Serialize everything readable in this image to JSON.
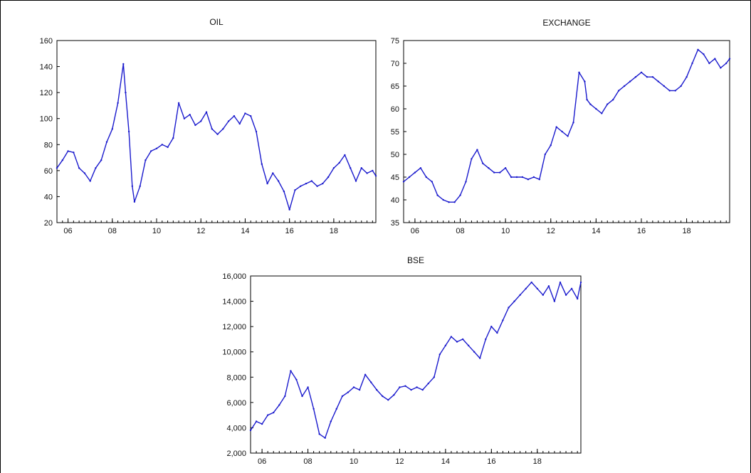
{
  "colors": {
    "series": "#1a1acd",
    "axis": "#000000",
    "background": "#ffffff"
  },
  "chart_data": [
    {
      "type": "line",
      "title": "OIL",
      "ylim": [
        20,
        160
      ],
      "yticks": [
        20,
        40,
        60,
        80,
        100,
        120,
        140,
        160
      ],
      "xlim": [
        2005.5,
        2019.9
      ],
      "xticks": [
        2006,
        2008,
        2010,
        2012,
        2014,
        2016,
        2018
      ],
      "xticklabels": [
        "06",
        "08",
        "10",
        "12",
        "14",
        "16",
        "18"
      ],
      "grid": false,
      "series": [
        {
          "x": [
            2005.5,
            2005.75,
            2006.0,
            2006.25,
            2006.5,
            2006.75,
            2007.0,
            2007.25,
            2007.5,
            2007.75,
            2008.0,
            2008.25,
            2008.5,
            2008.6,
            2008.75,
            2008.9,
            2009.0,
            2009.25,
            2009.5,
            2009.75,
            2010.0,
            2010.25,
            2010.5,
            2010.75,
            2011.0,
            2011.25,
            2011.5,
            2011.75,
            2012.0,
            2012.25,
            2012.5,
            2012.75,
            2013.0,
            2013.25,
            2013.5,
            2013.75,
            2014.0,
            2014.25,
            2014.5,
            2014.75,
            2015.0,
            2015.25,
            2015.5,
            2015.75,
            2016.0,
            2016.25,
            2016.5,
            2016.75,
            2017.0,
            2017.25,
            2017.5,
            2017.75,
            2018.0,
            2018.25,
            2018.5,
            2018.75,
            2019.0,
            2019.25,
            2019.5,
            2019.75,
            2019.9
          ],
          "values": [
            62,
            68,
            75,
            74,
            62,
            58,
            52,
            62,
            68,
            82,
            92,
            112,
            142,
            120,
            90,
            48,
            36,
            48,
            68,
            75,
            77,
            80,
            78,
            85,
            112,
            100,
            103,
            95,
            98,
            105,
            92,
            88,
            92,
            98,
            102,
            96,
            104,
            102,
            90,
            65,
            50,
            58,
            52,
            44,
            30,
            45,
            48,
            50,
            52,
            48,
            50,
            55,
            62,
            66,
            72,
            62,
            52,
            62,
            58,
            60,
            56
          ]
        }
      ]
    },
    {
      "type": "line",
      "title": "EXCHANGE",
      "ylim": [
        35,
        75
      ],
      "yticks": [
        35,
        40,
        45,
        50,
        55,
        60,
        65,
        70,
        75
      ],
      "xlim": [
        2005.5,
        2019.9
      ],
      "xticks": [
        2006,
        2008,
        2010,
        2012,
        2014,
        2016,
        2018
      ],
      "xticklabels": [
        "06",
        "08",
        "10",
        "12",
        "14",
        "16",
        "18"
      ],
      "grid": false,
      "series": [
        {
          "x": [
            2005.5,
            2005.75,
            2006.0,
            2006.25,
            2006.5,
            2006.75,
            2007.0,
            2007.25,
            2007.5,
            2007.75,
            2008.0,
            2008.25,
            2008.5,
            2008.75,
            2009.0,
            2009.25,
            2009.5,
            2009.75,
            2010.0,
            2010.25,
            2010.5,
            2010.75,
            2011.0,
            2011.25,
            2011.5,
            2011.75,
            2012.0,
            2012.25,
            2012.5,
            2012.75,
            2013.0,
            2013.25,
            2013.5,
            2013.6,
            2013.75,
            2014.0,
            2014.25,
            2014.5,
            2014.75,
            2015.0,
            2015.25,
            2015.5,
            2015.75,
            2016.0,
            2016.25,
            2016.5,
            2016.75,
            2017.0,
            2017.25,
            2017.5,
            2017.75,
            2018.0,
            2018.25,
            2018.5,
            2018.75,
            2019.0,
            2019.25,
            2019.5,
            2019.75,
            2019.9
          ],
          "values": [
            44,
            45,
            46,
            47,
            45,
            44,
            41,
            40,
            39.5,
            39.5,
            41,
            44,
            49,
            51,
            48,
            47,
            46,
            46,
            47,
            45,
            45,
            45,
            44.5,
            45,
            44.5,
            50,
            52,
            56,
            55,
            54,
            57,
            68,
            66,
            62,
            61,
            60,
            59,
            61,
            62,
            64,
            65,
            66,
            67,
            68,
            67,
            67,
            66,
            65,
            64,
            64,
            65,
            67,
            70,
            73,
            72,
            70,
            71,
            69,
            70,
            71
          ]
        }
      ]
    },
    {
      "type": "line",
      "title": "BSE",
      "ylim": [
        2000,
        16000
      ],
      "yticks": [
        2000,
        4000,
        6000,
        8000,
        10000,
        12000,
        14000,
        16000
      ],
      "yticklabels": [
        "2,000",
        "4,000",
        "6,000",
        "8,000",
        "10,000",
        "12,000",
        "14,000",
        "16,000"
      ],
      "xlim": [
        2005.5,
        2019.9
      ],
      "xticks": [
        2006,
        2008,
        2010,
        2012,
        2014,
        2016,
        2018
      ],
      "xticklabels": [
        "06",
        "08",
        "10",
        "12",
        "14",
        "16",
        "18"
      ],
      "grid": false,
      "series": [
        {
          "x": [
            2005.5,
            2005.75,
            2006.0,
            2006.25,
            2006.5,
            2006.75,
            2007.0,
            2007.25,
            2007.5,
            2007.75,
            2008.0,
            2008.25,
            2008.5,
            2008.75,
            2009.0,
            2009.25,
            2009.5,
            2009.75,
            2010.0,
            2010.25,
            2010.5,
            2010.75,
            2011.0,
            2011.25,
            2011.5,
            2011.75,
            2012.0,
            2012.25,
            2012.5,
            2012.75,
            2013.0,
            2013.25,
            2013.5,
            2013.75,
            2014.0,
            2014.25,
            2014.5,
            2014.75,
            2015.0,
            2015.25,
            2015.5,
            2015.75,
            2016.0,
            2016.25,
            2016.5,
            2016.75,
            2017.0,
            2017.25,
            2017.5,
            2017.75,
            2018.0,
            2018.25,
            2018.5,
            2018.75,
            2019.0,
            2019.25,
            2019.5,
            2019.75,
            2019.9
          ],
          "values": [
            3800,
            4500,
            4300,
            5000,
            5200,
            5800,
            6500,
            8500,
            7800,
            6500,
            7200,
            5500,
            3500,
            3200,
            4500,
            5500,
            6500,
            6800,
            7200,
            7000,
            8200,
            7600,
            7000,
            6500,
            6200,
            6600,
            7200,
            7300,
            7000,
            7200,
            7000,
            7500,
            8000,
            9800,
            10500,
            11200,
            10800,
            11000,
            10500,
            10000,
            9500,
            11000,
            12000,
            11500,
            12500,
            13500,
            14000,
            14500,
            15000,
            15500,
            15000,
            14500,
            15200,
            14000,
            15500,
            14500,
            15000,
            14200,
            15500
          ]
        }
      ]
    }
  ]
}
